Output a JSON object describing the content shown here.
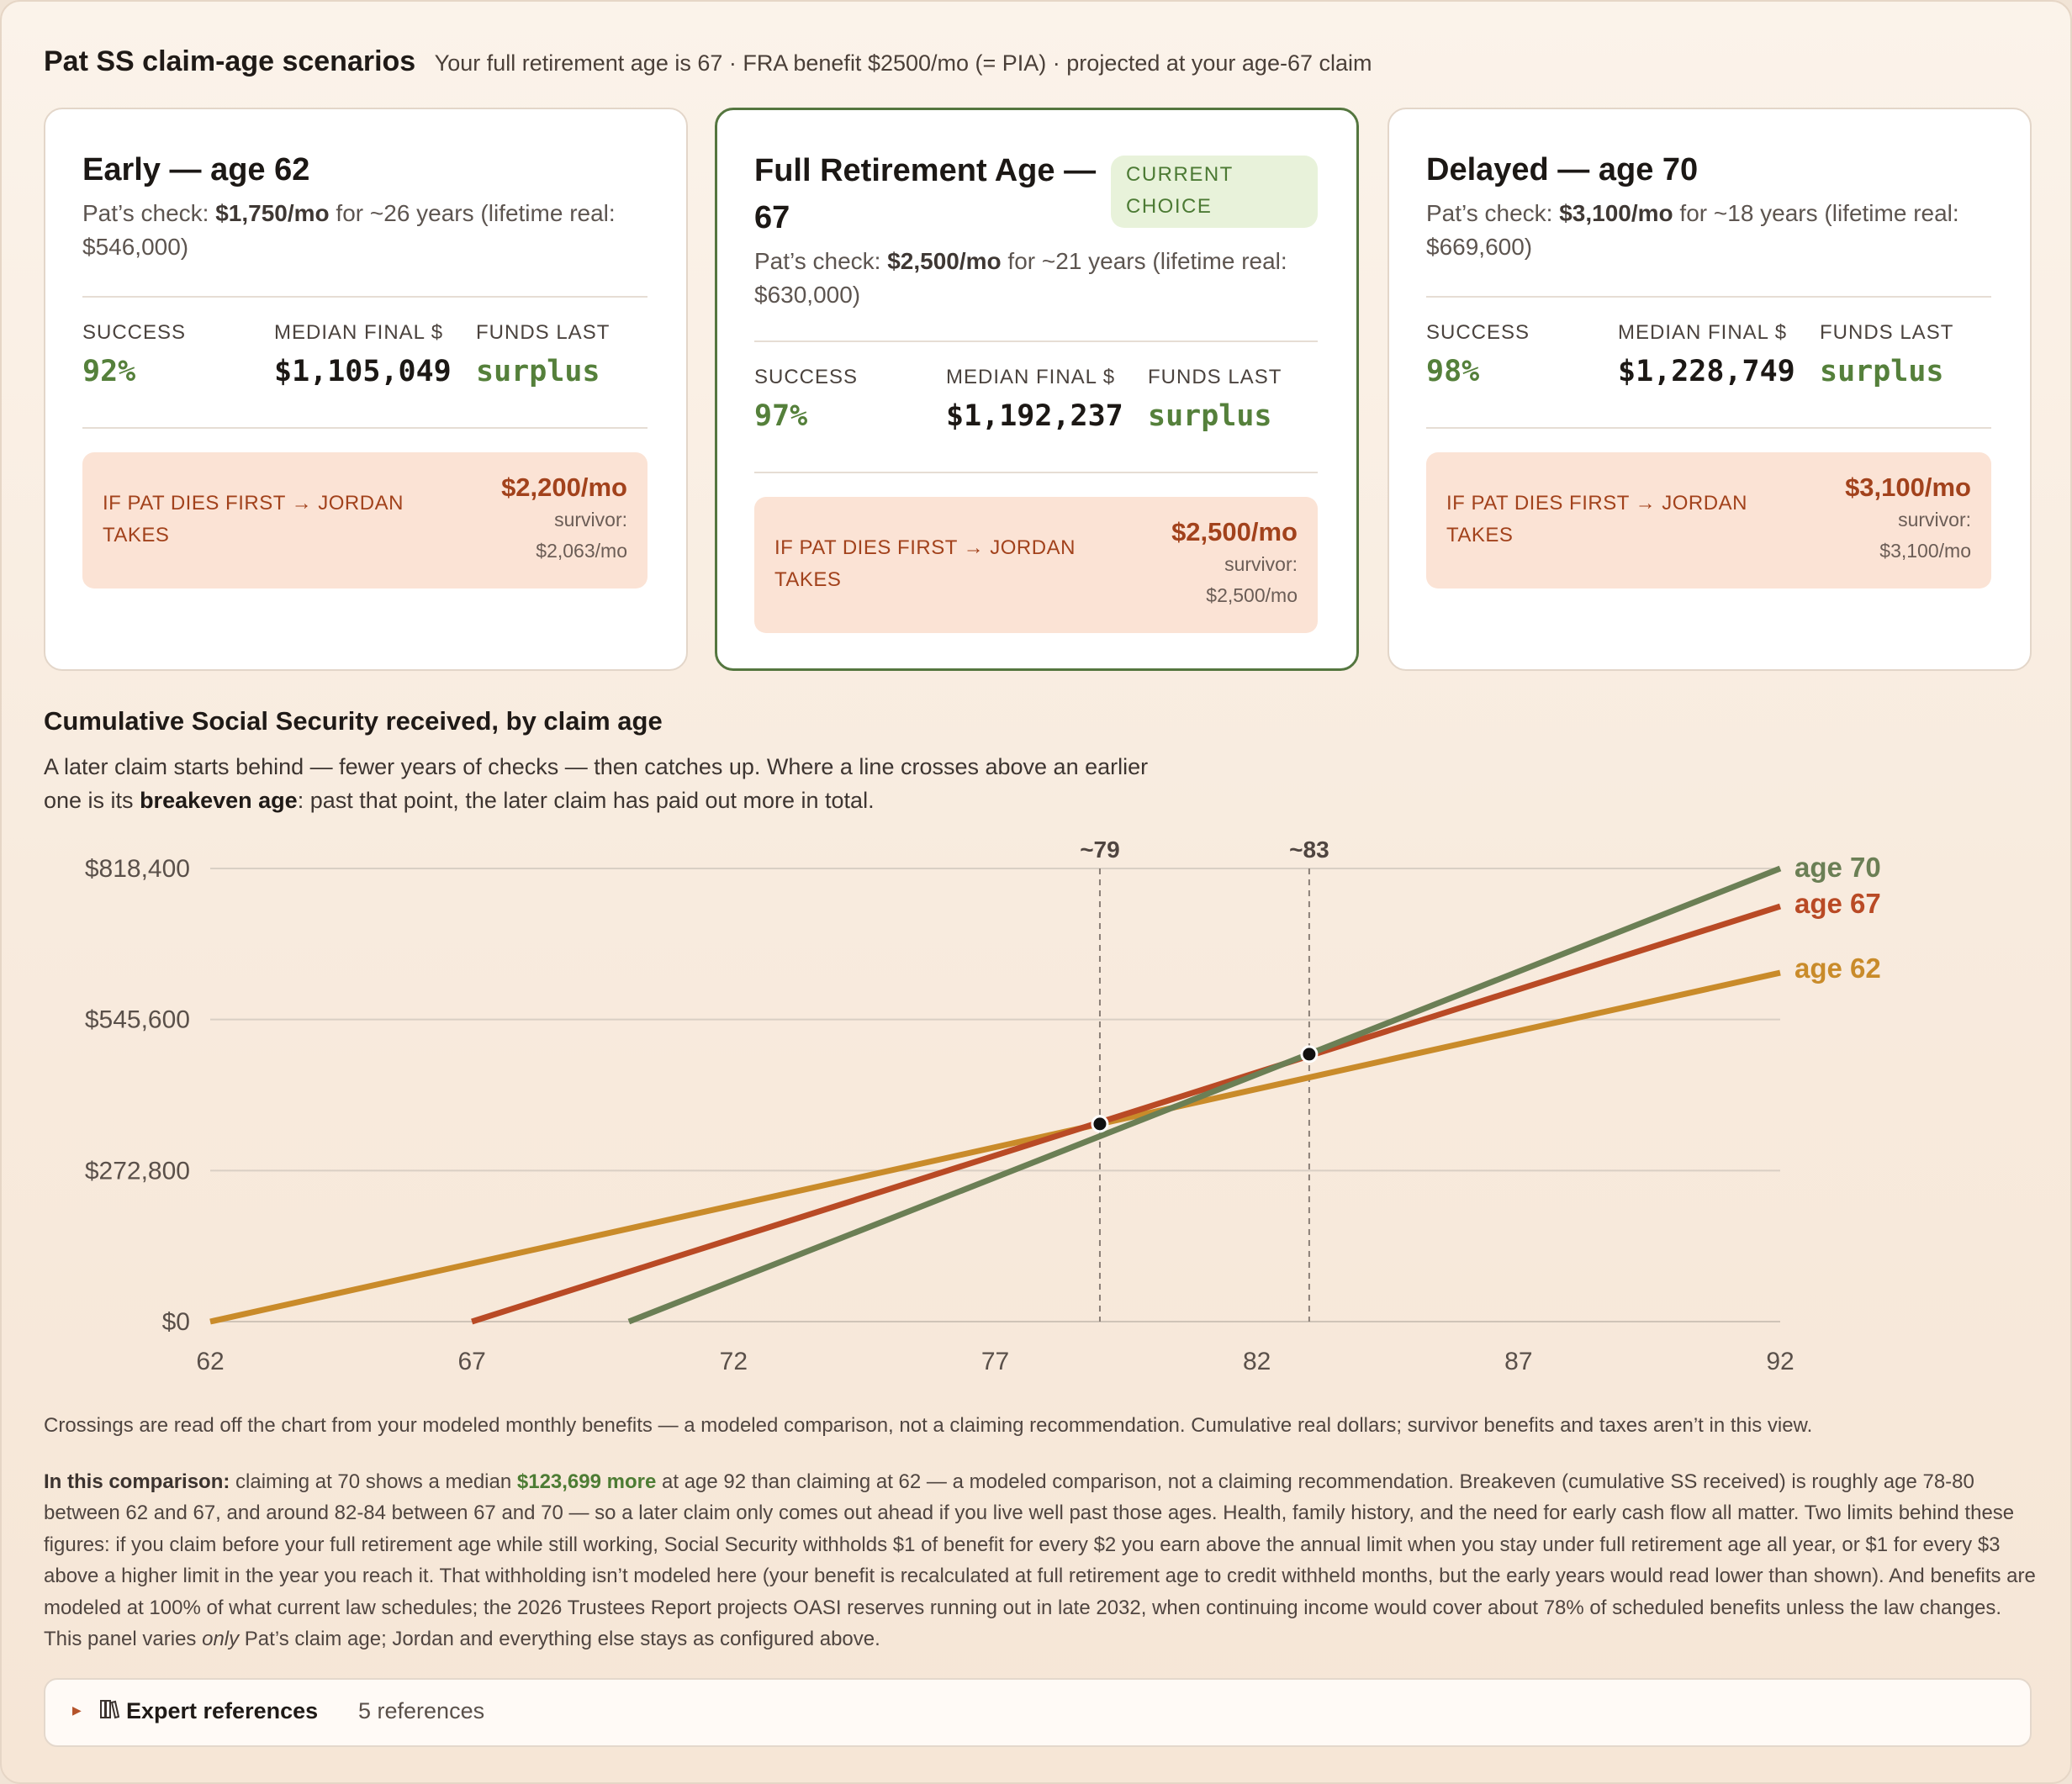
{
  "header": {
    "title": "Pat SS claim-age scenarios",
    "subtitle": "Your full retirement age is 67 · FRA benefit $2500/mo (= PIA) · projected at your age-67 claim"
  },
  "cards": [
    {
      "title": "Early — age 62",
      "check_prefix": "Pat’s check: ",
      "check_amount": "$1,750/mo",
      "check_rest": " for ~26 years (lifetime real: $546,000)",
      "success_label": "SUCCESS",
      "success": "92%",
      "median_label": "MEDIAN FINAL $",
      "median": "$1,105,049",
      "funds_label": "FUNDS LAST",
      "funds": "surplus",
      "survivor_label": "IF PAT DIES FIRST → JORDAN TAKES",
      "survivor_amount": "$2,200/mo",
      "survivor_word": "survivor:",
      "survivor_value": "$2,063/mo"
    },
    {
      "title": "Full Retirement Age — 67",
      "badge": "CURRENT CHOICE",
      "check_prefix": "Pat’s check: ",
      "check_amount": "$2,500/mo",
      "check_rest": " for ~21 years (lifetime real: $630,000)",
      "success_label": "SUCCESS",
      "success": "97%",
      "median_label": "MEDIAN FINAL $",
      "median": "$1,192,237",
      "funds_label": "FUNDS LAST",
      "funds": "surplus",
      "survivor_label": "IF PAT DIES FIRST → JORDAN TAKES",
      "survivor_amount": "$2,500/mo",
      "survivor_word": "survivor:",
      "survivor_value": "$2,500/mo"
    },
    {
      "title": "Delayed — age 70",
      "check_prefix": "Pat’s check: ",
      "check_amount": "$3,100/mo",
      "check_rest": " for ~18 years (lifetime real: $669,600)",
      "success_label": "SUCCESS",
      "success": "98%",
      "median_label": "MEDIAN FINAL $",
      "median": "$1,228,749",
      "funds_label": "FUNDS LAST",
      "funds": "surplus",
      "survivor_label": "IF PAT DIES FIRST → JORDAN TAKES",
      "survivor_amount": "$3,100/mo",
      "survivor_word": "survivor:",
      "survivor_value": "$3,100/mo"
    }
  ],
  "chart_section": {
    "title": "Cumulative Social Security received, by claim age",
    "desc_a": "A later claim starts behind — fewer years of checks — then catches up. Where a line crosses above an earlier one is its ",
    "desc_bold": "breakeven age",
    "desc_b": ": past that point, the later claim has paid out more in total."
  },
  "chart_data": {
    "type": "line",
    "title": "Cumulative Social Security received, by claim age",
    "x_ticks": [
      62,
      67,
      72,
      77,
      82,
      87,
      92
    ],
    "y_ticks": [
      0,
      272800,
      545600,
      818400
    ],
    "y_tick_labels": [
      "$0",
      "$272,800",
      "$545,600",
      "$818,400"
    ],
    "xlim": [
      62,
      92
    ],
    "ylim": [
      0,
      818400
    ],
    "grid": true,
    "legend": "right-end line labels",
    "series": [
      {
        "name": "age 70",
        "color": "#6b7f55",
        "x": [
          70,
          92
        ],
        "y": [
          0,
          818400
        ]
      },
      {
        "name": "age 67",
        "color": "#b94a25",
        "x": [
          67,
          92
        ],
        "y": [
          0,
          750000
        ]
      },
      {
        "name": "age 62",
        "color": "#c98b2a",
        "x": [
          62,
          92
        ],
        "y": [
          0,
          630000
        ]
      }
    ],
    "breakevens": [
      {
        "label": "~79",
        "x": 79,
        "y": 357000
      },
      {
        "label": "~83",
        "x": 83,
        "y": 483000
      }
    ]
  },
  "notes": {
    "crossings": "Crossings are read off the chart from your modeled monthly benefits — a modeled comparison, not a claiming recommendation. Cumulative real dollars; survivor benefits and taxes aren’t in this view.",
    "comp_label": "In this comparison:",
    "comp_a": " claiming at 70 shows a median ",
    "comp_green": "$123,699 more",
    "comp_b": " at age 92 than claiming at 62 — a modeled comparison, not a claiming recommendation. Breakeven (cumulative SS received) is roughly age 78-80 between 62 and 67, and around 82-84 between 67 and 70 — so a later claim only comes out ahead if you live well past those ages. Health, family history, and the need for early cash flow all matter. Two limits behind these figures: if you claim before your full retirement age while still working, Social Security withholds $1 of benefit for every $2 you earn above the annual limit when you stay under full retirement age all year, or $1 for every $3 above a higher limit in the year you reach it. That withholding isn’t modeled here (your benefit is recalculated at full retirement age to credit withheld months, but the early years would read lower than shown). And benefits are modeled at 100% of what current law schedules; the 2026 Trustees Report projects OASI reserves running out in late 2032, when continuing income would cover about 78% of scheduled benefits unless the law changes. This panel varies ",
    "comp_italic": "only",
    "comp_c": " Pat’s claim age; Jordan and everything else stays as configured above."
  },
  "references": {
    "arrow_icon": "caret-right-icon",
    "book_icon": "books-icon",
    "label": "Expert references",
    "count": "5 references"
  }
}
